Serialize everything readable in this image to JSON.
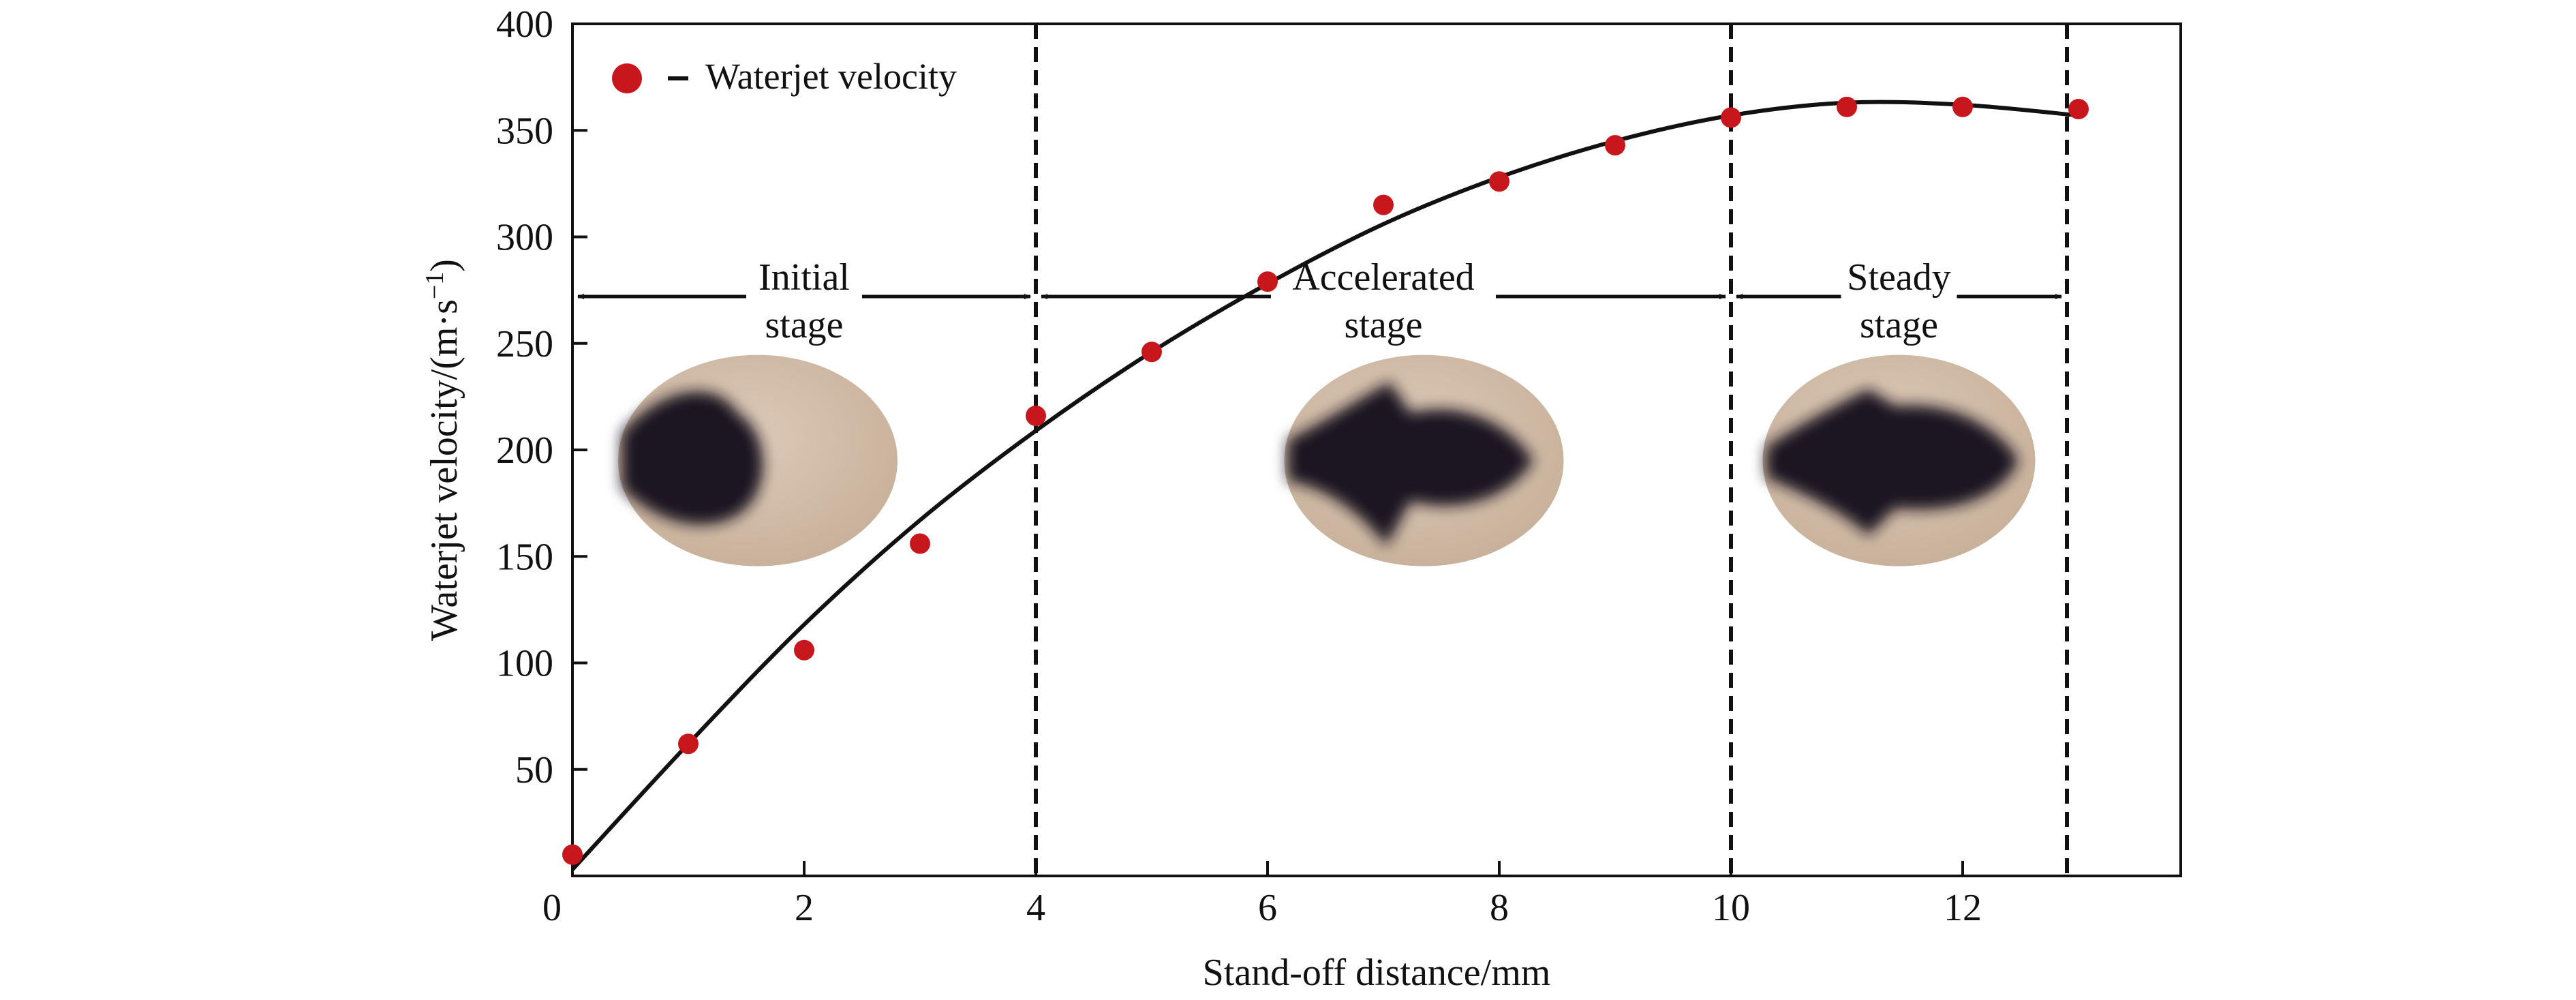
{
  "chart_data": {
    "type": "scatter",
    "xlabel": "Stand-off distance/mm",
    "ylabel": "Waterjet velocity/(m·s",
    "ylabel_sup": "−1",
    "ylabel_close": ")",
    "xlim": [
      0,
      14
    ],
    "ylim": [
      0,
      400
    ],
    "x_ticks": [
      0,
      2,
      4,
      6,
      8,
      10,
      12
    ],
    "y_ticks": [
      50,
      100,
      150,
      200,
      250,
      300,
      350,
      400
    ],
    "x_tick_labels": [
      "0",
      "2",
      "4",
      "6",
      "8",
      "10",
      "12"
    ],
    "y_tick_labels": [
      "50",
      "100",
      "150",
      "200",
      "250",
      "300",
      "350",
      "400"
    ],
    "series": [
      {
        "name": "Waterjet velocity",
        "color": "#c8161d",
        "x": [
          0,
          1,
          2,
          3,
          4,
          5,
          6,
          7,
          8,
          9,
          10,
          11,
          12,
          13
        ],
        "y": [
          10,
          62,
          106,
          156,
          216,
          246,
          279,
          315,
          326,
          343,
          356,
          361,
          361,
          360
        ]
      }
    ],
    "fit_curve": {
      "color": "#111111",
      "x": [
        0,
        1,
        2,
        3,
        4,
        5,
        6,
        7,
        8,
        9,
        10,
        11,
        12,
        13
      ],
      "y": [
        3,
        62,
        118,
        167,
        209,
        246,
        278,
        306,
        328,
        345,
        357,
        363,
        362,
        357
      ]
    },
    "legend": {
      "position": "top-left",
      "label": "Waterjet velocity"
    },
    "stage_boundaries_x": [
      4,
      10,
      12.9
    ],
    "stages": [
      {
        "line1": "Initial",
        "line2": "stage",
        "x_start": 0,
        "x_end": 4
      },
      {
        "line1": "Accelerated",
        "line2": "stage",
        "x_start": 4,
        "x_end": 10
      },
      {
        "line1": "Steady",
        "line2": "stage",
        "x_start": 10,
        "x_end": 12.9
      }
    ],
    "grid": false
  }
}
